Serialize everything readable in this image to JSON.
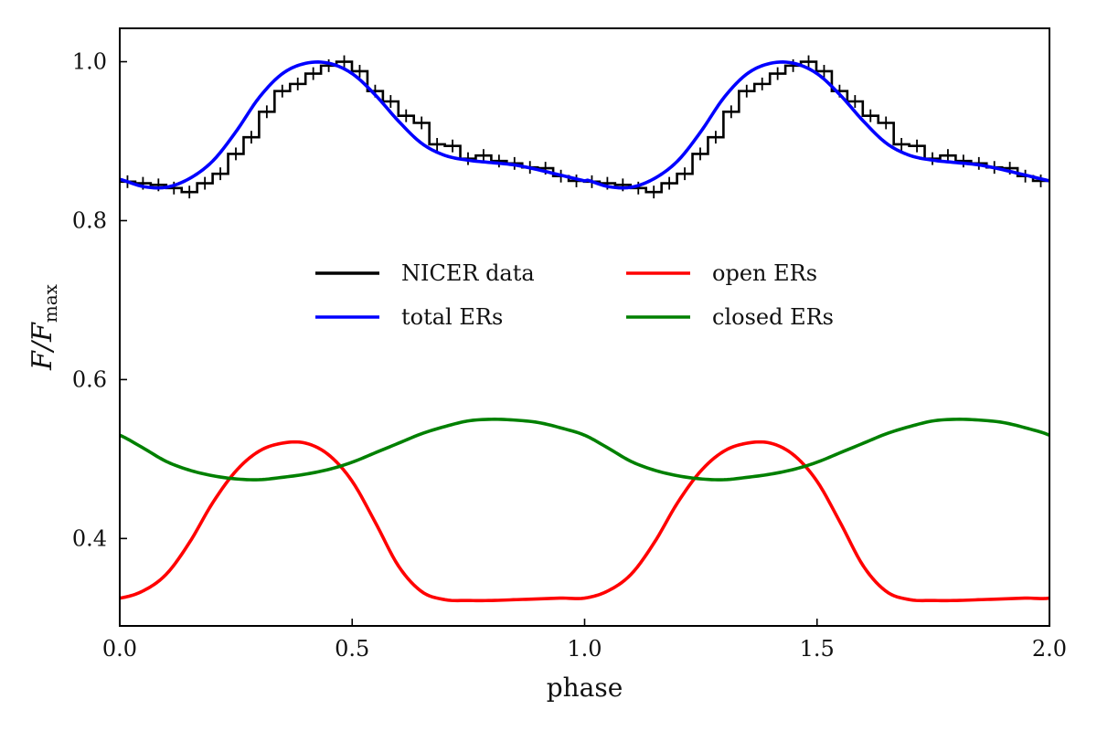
{
  "chart_data": {
    "type": "line",
    "title": "",
    "xlabel": "phase",
    "ylabel": {
      "main": "F/F",
      "sub": "max"
    },
    "xlim": [
      0.0,
      2.0
    ],
    "ylim": [
      0.29,
      1.042
    ],
    "xticks": [
      0.0,
      0.5,
      1.0,
      1.5,
      2.0
    ],
    "xtick_labels": [
      "0.0",
      "0.5",
      "1.0",
      "1.5",
      "2.0"
    ],
    "yticks": [
      0.4,
      0.6,
      0.8,
      1.0
    ],
    "ytick_labels": [
      "0.4",
      "0.6",
      "0.8",
      "1.0"
    ],
    "grid": false,
    "legend_position": "center-top",
    "phase_grid": [
      0.0,
      0.05,
      0.1,
      0.15,
      0.2,
      0.25,
      0.3,
      0.35,
      0.4,
      0.45,
      0.5,
      0.55,
      0.6,
      0.65,
      0.7,
      0.75,
      0.8,
      0.85,
      0.9,
      0.95,
      1.0
    ],
    "series": [
      {
        "name": "NICER data",
        "color": "#000000",
        "style": "steps-with-errorbars",
        "bin_width": 0.0333,
        "values": [
          0.849,
          0.847,
          0.845,
          0.841,
          0.836,
          0.847,
          0.859,
          0.884,
          0.905,
          0.937,
          0.963,
          0.972,
          0.985,
          0.995,
          1.0,
          0.988,
          0.963,
          0.95,
          0.932,
          0.923,
          0.896,
          0.894,
          0.878,
          0.882,
          0.875,
          0.872,
          0.867,
          0.866,
          0.856,
          0.85
        ],
        "error": 0.008
      },
      {
        "name": "total ERs",
        "color": "#0000ff",
        "style": "line",
        "values": [
          0.852,
          0.843,
          0.842,
          0.853,
          0.875,
          0.912,
          0.955,
          0.985,
          0.998,
          0.998,
          0.985,
          0.958,
          0.925,
          0.897,
          0.882,
          0.876,
          0.873,
          0.87,
          0.864,
          0.857,
          0.85
        ]
      },
      {
        "name": "open ERs",
        "color": "#ff0000",
        "style": "line",
        "values": [
          0.325,
          0.334,
          0.355,
          0.395,
          0.445,
          0.485,
          0.51,
          0.52,
          0.52,
          0.505,
          0.472,
          0.42,
          0.365,
          0.333,
          0.323,
          0.322,
          0.322,
          0.323,
          0.324,
          0.325,
          0.325
        ]
      },
      {
        "name": "closed ERs",
        "color": "#008000",
        "style": "line",
        "values": [
          0.53,
          0.514,
          0.497,
          0.486,
          0.479,
          0.475,
          0.474,
          0.477,
          0.481,
          0.487,
          0.496,
          0.508,
          0.52,
          0.532,
          0.541,
          0.548,
          0.55,
          0.549,
          0.546,
          0.539,
          0.53
        ]
      }
    ],
    "legend": {
      "columns": [
        [
          "NICER data",
          "total ERs"
        ],
        [
          "open ERs",
          "closed ERs"
        ]
      ]
    }
  }
}
